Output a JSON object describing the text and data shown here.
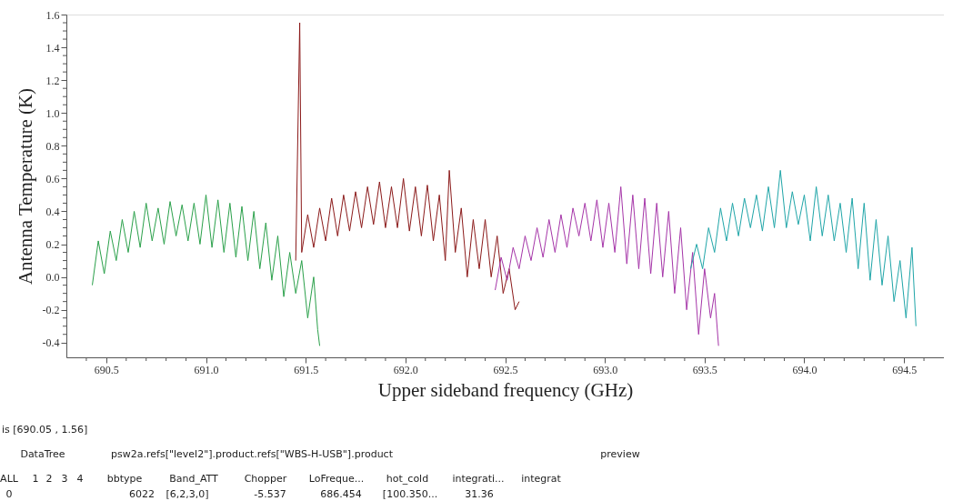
{
  "chart_data": {
    "type": "line",
    "xlabel": "Upper sideband frequency (GHz)",
    "ylabel": "Antenna Temperature (K)",
    "xlim": [
      690.3,
      694.7
    ],
    "ylim": [
      -0.49,
      1.6
    ],
    "xticks": [
      {
        "value": 690.4,
        "label": null
      },
      690.5,
      {
        "value": 690.6,
        "label": null
      },
      {
        "value": 690.7,
        "label": null
      },
      {
        "value": 690.8,
        "label": null
      },
      {
        "value": 690.9,
        "label": null
      },
      {
        "value": 691,
        "label": "691.0"
      },
      {
        "value": 691.1,
        "label": null
      },
      {
        "value": 691.2,
        "label": null
      },
      {
        "value": 691.3,
        "label": null
      },
      {
        "value": 691.4,
        "label": null
      },
      691.5,
      {
        "value": 691.6,
        "label": null
      },
      {
        "value": 691.7,
        "label": null
      },
      {
        "value": 691.8,
        "label": null
      },
      {
        "value": 691.9,
        "label": null
      },
      {
        "value": 692,
        "label": "692.0"
      },
      {
        "value": 692.1,
        "label": null
      },
      {
        "value": 692.2,
        "label": null
      },
      {
        "value": 692.3,
        "label": null
      },
      {
        "value": 692.4,
        "label": null
      },
      692.5,
      {
        "value": 692.6,
        "label": null
      },
      {
        "value": 692.7,
        "label": null
      },
      {
        "value": 692.8,
        "label": null
      },
      {
        "value": 692.9,
        "label": null
      },
      {
        "value": 693,
        "label": "693.0"
      },
      {
        "value": 693.1,
        "label": null
      },
      {
        "value": 693.2,
        "label": null
      },
      {
        "value": 693.3,
        "label": null
      },
      {
        "value": 693.4,
        "label": null
      },
      693.5,
      {
        "value": 693.6,
        "label": null
      },
      {
        "value": 693.7,
        "label": null
      },
      {
        "value": 693.8,
        "label": null
      },
      {
        "value": 693.9,
        "label": null
      },
      {
        "value": 694,
        "label": "694.0"
      },
      {
        "value": 694.1,
        "label": null
      },
      {
        "value": 694.2,
        "label": null
      },
      {
        "value": 694.3,
        "label": null
      },
      {
        "value": 694.4,
        "label": null
      },
      694.5,
      {
        "value": 694.6,
        "label": null
      }
    ],
    "yticks": [
      -0.4,
      {
        "value": -0.35,
        "label": null
      },
      {
        "value": -0.3,
        "label": null
      },
      {
        "value": -0.25,
        "label": null
      },
      -0.2,
      {
        "value": -0.15,
        "label": null
      },
      {
        "value": -0.1,
        "label": null
      },
      {
        "value": -0.05,
        "label": null
      },
      {
        "value": 0,
        "label": "0.0"
      },
      {
        "value": 0.05,
        "label": null
      },
      {
        "value": 0.1,
        "label": null
      },
      {
        "value": 0.15,
        "label": null
      },
      0.2,
      {
        "value": 0.25,
        "label": null
      },
      {
        "value": 0.3,
        "label": null
      },
      {
        "value": 0.35,
        "label": null
      },
      0.4,
      {
        "value": 0.45,
        "label": null
      },
      {
        "value": 0.5,
        "label": null
      },
      {
        "value": 0.55,
        "label": null
      },
      0.6,
      {
        "value": 0.65,
        "label": null
      },
      {
        "value": 0.7,
        "label": null
      },
      {
        "value": 0.75,
        "label": null
      },
      0.8,
      {
        "value": 0.85,
        "label": null
      },
      {
        "value": 0.9,
        "label": null
      },
      {
        "value": 0.95,
        "label": null
      },
      {
        "value": 1,
        "label": "1.0"
      },
      {
        "value": 1.05,
        "label": null
      },
      {
        "value": 1.1,
        "label": null
      },
      {
        "value": 1.15,
        "label": null
      },
      1.2,
      {
        "value": 1.25,
        "label": null
      },
      {
        "value": 1.3,
        "label": null
      },
      {
        "value": 1.35,
        "label": null
      },
      1.4,
      {
        "value": 1.45,
        "label": null
      },
      {
        "value": 1.5,
        "label": null
      },
      {
        "value": 1.55,
        "label": null
      },
      1.6
    ],
    "grid": false,
    "marker": "none",
    "line_style": "solid",
    "series": [
      {
        "color": "#2aa04a",
        "x": [
          690.43,
          690.46,
          690.49,
          690.52,
          690.55,
          690.58,
          690.61,
          690.64,
          690.67,
          690.7,
          690.73,
          690.76,
          690.79,
          690.82,
          690.85,
          690.88,
          690.91,
          690.94,
          690.97,
          691.0,
          691.03,
          691.06,
          691.09,
          691.12,
          691.15,
          691.18,
          691.21,
          691.24,
          691.27,
          691.3,
          691.33,
          691.36,
          691.39,
          691.42,
          691.45,
          691.48,
          691.51,
          691.54,
          691.56,
          691.57
        ],
        "values": [
          -0.05,
          0.22,
          0.02,
          0.28,
          0.1,
          0.35,
          0.15,
          0.4,
          0.18,
          0.45,
          0.22,
          0.42,
          0.2,
          0.46,
          0.25,
          0.44,
          0.22,
          0.45,
          0.2,
          0.5,
          0.18,
          0.47,
          0.15,
          0.45,
          0.12,
          0.43,
          0.1,
          0.4,
          0.05,
          0.33,
          -0.02,
          0.25,
          -0.12,
          0.15,
          -0.1,
          0.1,
          -0.25,
          0.0,
          -0.32,
          -0.42
        ]
      },
      {
        "color": "#8b1a1a",
        "x": [
          691.45,
          691.47,
          691.48,
          691.51,
          691.54,
          691.57,
          691.6,
          691.63,
          691.66,
          691.69,
          691.72,
          691.75,
          691.78,
          691.81,
          691.84,
          691.87,
          691.9,
          691.93,
          691.96,
          691.99,
          692.02,
          692.05,
          692.08,
          692.11,
          692.14,
          692.17,
          692.2,
          692.22,
          692.25,
          692.28,
          692.31,
          692.34,
          692.37,
          692.4,
          692.43,
          692.46,
          692.49,
          692.52,
          692.55,
          692.57
        ],
        "values": [
          0.1,
          1.55,
          0.15,
          0.38,
          0.18,
          0.42,
          0.22,
          0.48,
          0.25,
          0.5,
          0.28,
          0.52,
          0.3,
          0.55,
          0.32,
          0.58,
          0.3,
          0.55,
          0.3,
          0.6,
          0.28,
          0.55,
          0.25,
          0.56,
          0.22,
          0.5,
          0.1,
          0.65,
          0.15,
          0.42,
          0.0,
          0.35,
          0.05,
          0.35,
          0.0,
          0.25,
          -0.1,
          0.05,
          -0.2,
          -0.15
        ]
      },
      {
        "color": "#a535a8",
        "x": [
          692.45,
          692.48,
          692.51,
          692.54,
          692.57,
          692.6,
          692.63,
          692.66,
          692.69,
          692.72,
          692.75,
          692.78,
          692.81,
          692.84,
          692.87,
          692.9,
          692.93,
          692.96,
          692.99,
          693.02,
          693.05,
          693.08,
          693.11,
          693.14,
          693.17,
          693.2,
          693.23,
          693.26,
          693.29,
          693.32,
          693.35,
          693.38,
          693.41,
          693.44,
          693.47,
          693.5,
          693.53,
          693.55,
          693.57
        ],
        "values": [
          -0.08,
          0.12,
          -0.02,
          0.18,
          0.05,
          0.25,
          0.1,
          0.3,
          0.12,
          0.35,
          0.15,
          0.38,
          0.18,
          0.42,
          0.25,
          0.45,
          0.22,
          0.47,
          0.18,
          0.45,
          0.15,
          0.55,
          0.08,
          0.5,
          0.05,
          0.48,
          0.02,
          0.45,
          0.0,
          0.4,
          -0.1,
          0.3,
          -0.2,
          0.15,
          -0.35,
          0.05,
          -0.25,
          -0.1,
          -0.42
        ]
      },
      {
        "color": "#1fa5a8",
        "x": [
          693.43,
          693.46,
          693.49,
          693.52,
          693.55,
          693.58,
          693.61,
          693.64,
          693.67,
          693.7,
          693.73,
          693.76,
          693.79,
          693.82,
          693.85,
          693.88,
          693.91,
          693.94,
          693.97,
          694.0,
          694.03,
          694.06,
          694.09,
          694.12,
          694.15,
          694.18,
          694.21,
          694.24,
          694.27,
          694.3,
          694.33,
          694.36,
          694.39,
          694.42,
          694.45,
          694.48,
          694.51,
          694.54,
          694.56
        ],
        "values": [
          0.05,
          0.2,
          0.05,
          0.3,
          0.15,
          0.42,
          0.22,
          0.45,
          0.25,
          0.48,
          0.3,
          0.5,
          0.28,
          0.55,
          0.3,
          0.65,
          0.3,
          0.52,
          0.32,
          0.5,
          0.22,
          0.55,
          0.25,
          0.5,
          0.22,
          0.45,
          0.15,
          0.48,
          0.05,
          0.45,
          -0.02,
          0.35,
          -0.05,
          0.25,
          -0.15,
          0.1,
          -0.25,
          0.18,
          -0.3
        ]
      }
    ],
    "annotations": [
      "is [690.05 , 1.56]",
      "DataTree",
      "psw2a.refs[\"level2\"].product.refs[\"WBS-H-USB\"].product",
      "preview",
      "ALL",
      "1",
      "2",
      "3",
      "4",
      "bbtype",
      "Band_ATT",
      "Chopper",
      "LoFreque...",
      "hot_cold",
      "integrati...",
      "integrat",
      "0",
      "6022",
      "[6,2,3,0]",
      "-5.537",
      "686.454",
      "[100.350...",
      "31.36"
    ]
  }
}
